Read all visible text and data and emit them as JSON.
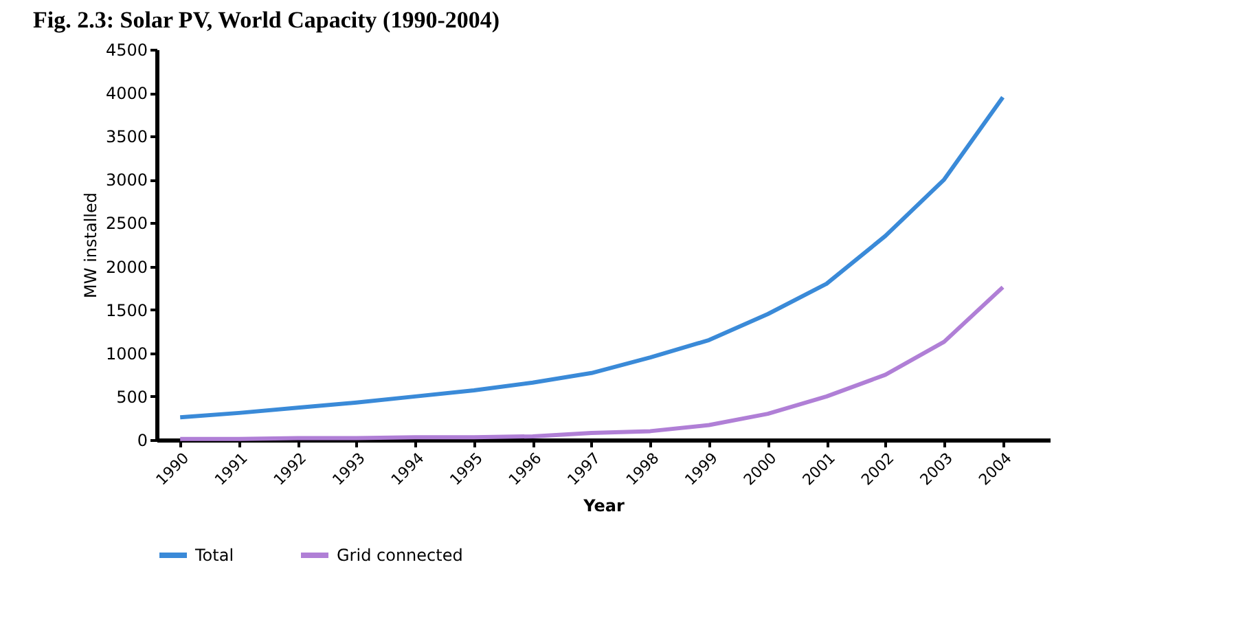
{
  "chart_data": {
    "type": "line",
    "title": "Fig. 2.3: Solar PV, World Capacity (1990-2004)",
    "xlabel": "Year",
    "ylabel": "MW installed",
    "categories": [
      "1990",
      "1991",
      "1992",
      "1993",
      "1994",
      "1995",
      "1996",
      "1997",
      "1998",
      "1999",
      "2000",
      "2001",
      "2002",
      "2003",
      "2004"
    ],
    "series": [
      {
        "name": "Total",
        "color": "#3a8ad8",
        "values": [
          260,
          310,
          370,
          430,
          500,
          570,
          660,
          770,
          950,
          1150,
          1450,
          1800,
          2350,
          3000,
          3950
        ]
      },
      {
        "name": "Grid connected",
        "color": "#b07fd6",
        "values": [
          10,
          10,
          20,
          20,
          30,
          30,
          40,
          80,
          100,
          170,
          300,
          500,
          750,
          1130,
          1760
        ]
      }
    ],
    "ylim": [
      0,
      4500
    ],
    "yticks": [
      0,
      500,
      1000,
      1500,
      2000,
      2500,
      3000,
      3500,
      4000,
      4500
    ],
    "grid": false,
    "legend": "bottom",
    "marker": "none",
    "line_style": "solid"
  }
}
